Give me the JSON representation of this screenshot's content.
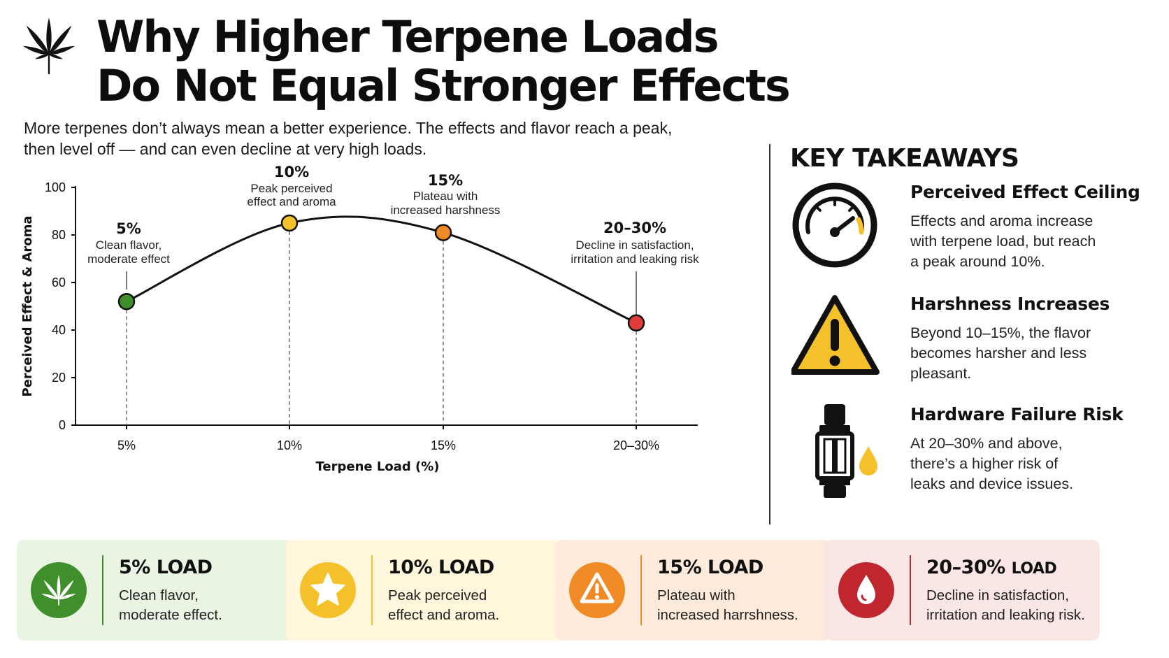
{
  "header": {
    "title_line1": "Why Higher Terpene Loads",
    "title_line2": "Do Not Equal Stronger Effects",
    "subtitle_line1": "More terpenes don’t always mean a better experience. The effects and flavor reach a peak,",
    "subtitle_line2": "then level off — and can even decline at very high loads."
  },
  "chart_data": {
    "type": "line",
    "xlabel": "Terpene Load (%)",
    "ylabel": "Perceived Effect & Aroma",
    "ylim": [
      0,
      100
    ],
    "yticks": [
      0,
      20,
      40,
      60,
      80,
      100
    ],
    "categories": [
      "5%",
      "10%",
      "15%",
      "20–30%"
    ],
    "values": [
      52,
      85,
      81,
      43
    ],
    "grid": false,
    "point_colors": [
      "#3f8f2c",
      "#f5c12b",
      "#f08a24",
      "#e03c3c"
    ],
    "annotations": [
      {
        "head": "5%",
        "lines": [
          "Clean flavor,",
          "moderate effect"
        ]
      },
      {
        "head": "10%",
        "lines": [
          "Peak perceived",
          "effect and aroma"
        ]
      },
      {
        "head": "15%",
        "lines": [
          "Plateau with",
          "increased harshness"
        ]
      },
      {
        "head": "20–30%",
        "lines": [
          "Decline in satisfaction,",
          "irritation and leaking risk"
        ]
      }
    ]
  },
  "takeaways": {
    "heading": "KEY TAKEAWAYS",
    "items": [
      {
        "icon": "gauge-icon",
        "title": "Perceived Effect Ceiling",
        "lines": [
          "Effects and aroma increase",
          "with terpene load, but reach",
          "a peak around 10%."
        ]
      },
      {
        "icon": "warning-icon",
        "title": "Harshness Increases",
        "lines": [
          "Beyond 10–15%, the flavor",
          "becomes harsher and less",
          "pleasant."
        ]
      },
      {
        "icon": "vape-cartridge-icon",
        "title": "Hardware Failure Risk",
        "lines": [
          "At 20–30% and above,",
          "there’s a higher risk of",
          "leaks and device issues."
        ]
      }
    ]
  },
  "cards": [
    {
      "icon": "leaf-icon",
      "title": "5% LOAD",
      "lines": [
        "Clean flavor,",
        "moderate effect."
      ],
      "bg": "#eaf4e3",
      "accent": "#3f8f2c"
    },
    {
      "icon": "star-icon",
      "title": "10% LOAD",
      "lines": [
        "Peak perceived",
        "effect and aroma."
      ],
      "bg": "#fff6dc",
      "accent": "#f5c12b"
    },
    {
      "icon": "warning-icon",
      "title": "15% LOAD",
      "lines": [
        "Plateau with",
        "increased harrshness."
      ],
      "bg": "#feeadb",
      "accent": "#f08a24"
    },
    {
      "icon": "droplet-icon",
      "title_value": "20–30%",
      "title_unit": "LOAD",
      "lines": [
        "Decline in satisfaction,",
        "irritation and leaking risk."
      ],
      "bg": "#fbe6e6",
      "accent": "#c0262d"
    }
  ]
}
